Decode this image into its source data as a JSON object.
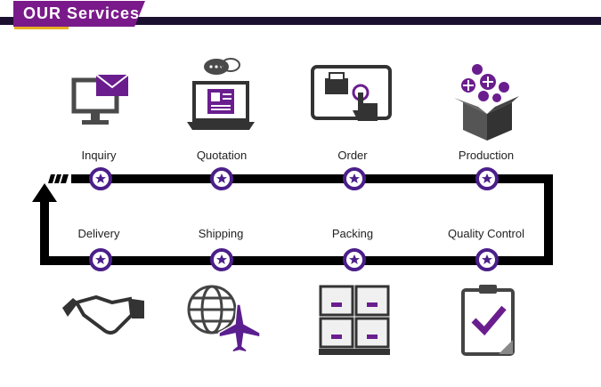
{
  "header": {
    "title": "OUR Services"
  },
  "steps_top": [
    {
      "label": "Inquiry",
      "icon": "computer-mail-icon"
    },
    {
      "label": "Quotation",
      "icon": "laptop-chat-icon"
    },
    {
      "label": "Order",
      "icon": "touchscreen-printer-icon"
    },
    {
      "label": "Production",
      "icon": "box-plus-icon"
    }
  ],
  "steps_bottom": [
    {
      "label": "Delivery",
      "icon": "handshake-icon"
    },
    {
      "label": "Shipping",
      "icon": "globe-plane-icon"
    },
    {
      "label": "Packing",
      "icon": "stacked-boxes-icon"
    },
    {
      "label": "Quality Control",
      "icon": "clipboard-check-icon"
    }
  ],
  "colors": {
    "purple": "#7a1a8a",
    "dark_purple": "#4b1f8a",
    "accent": "#e8b020",
    "gray": "#4a4a4a"
  }
}
